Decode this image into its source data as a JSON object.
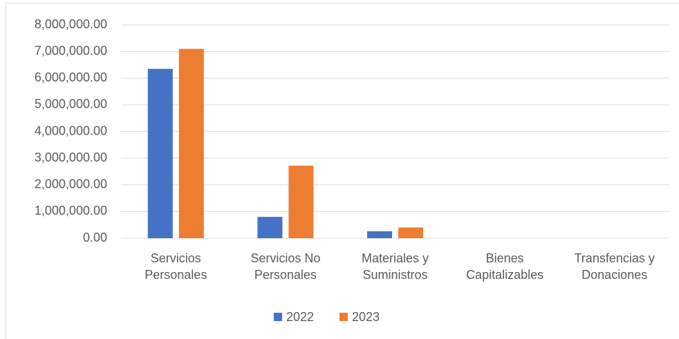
{
  "chart_data": {
    "type": "bar",
    "categories": [
      "Servicios Personales",
      "Servicios No Personales",
      "Materiales y Suministros",
      "Bienes Capitalizables",
      "Transfencias y Donaciones"
    ],
    "series": [
      {
        "name": "2022",
        "color": "#4472c4",
        "values": [
          6350000,
          800000,
          260000,
          0,
          0
        ]
      },
      {
        "name": "2023",
        "color": "#ed7d31",
        "values": [
          7100000,
          2720000,
          400000,
          0,
          0
        ]
      }
    ],
    "ylim": [
      0,
      8000000
    ],
    "yticks": [
      {
        "value": 0,
        "label": "0.00"
      },
      {
        "value": 1000000,
        "label": "1,000,000.00"
      },
      {
        "value": 2000000,
        "label": "2,000,000.00"
      },
      {
        "value": 3000000,
        "label": "3,000,000.00"
      },
      {
        "value": 4000000,
        "label": "4,000,000.00"
      },
      {
        "value": 5000000,
        "label": "5,000,000.00"
      },
      {
        "value": 6000000,
        "label": "6,000,000.00"
      },
      {
        "value": 7000000,
        "label": "7,000,000.00"
      },
      {
        "value": 8000000,
        "label": "8,000,000.00"
      }
    ],
    "grid": true,
    "legend": "bottom"
  }
}
